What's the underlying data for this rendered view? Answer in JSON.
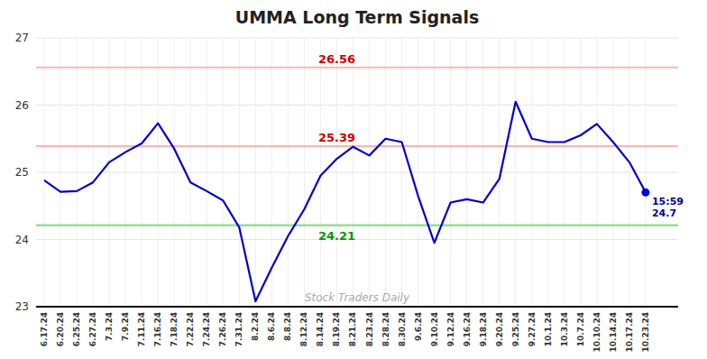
{
  "chart_data": {
    "type": "line",
    "title": "UMMA Long Term Signals",
    "categories": [
      "6.17.24",
      "6.20.24",
      "6.25.24",
      "6.27.24",
      "7.3.24",
      "7.9.24",
      "7.11.24",
      "7.16.24",
      "7.18.24",
      "7.22.24",
      "7.24.24",
      "7.26.24",
      "7.31.24",
      "8.2.24",
      "8.6.24",
      "8.8.24",
      "8.12.24",
      "8.14.24",
      "8.19.24",
      "8.21.24",
      "8.23.24",
      "8.28.24",
      "8.30.24",
      "9.6.24",
      "9.10.24",
      "9.12.24",
      "9.16.24",
      "9.18.24",
      "9.20.24",
      "9.25.24",
      "9.27.24",
      "10.1.24",
      "10.3.24",
      "10.7.24",
      "10.10.24",
      "10.14.24",
      "10.17.24",
      "10.23.24"
    ],
    "values": [
      24.88,
      24.71,
      24.72,
      24.85,
      25.15,
      25.3,
      25.43,
      25.73,
      25.35,
      24.85,
      24.72,
      24.58,
      24.18,
      23.08,
      23.58,
      24.05,
      24.45,
      24.95,
      25.2,
      25.38,
      25.25,
      25.5,
      25.45,
      24.65,
      23.95,
      24.55,
      24.6,
      24.55,
      24.9,
      26.05,
      25.5,
      25.45,
      25.45,
      25.55,
      25.72,
      25.45,
      25.15,
      24.7
    ],
    "color": "#0000cc",
    "ylim": [
      23.0,
      27.0
    ],
    "yticks": [
      23,
      24,
      25,
      26,
      27
    ],
    "grid": true,
    "reference_lines": [
      {
        "value": 26.56,
        "color": "#ffb3b3",
        "label": "26.56",
        "label_color": "#cc0000",
        "x": "8.19.24"
      },
      {
        "value": 25.39,
        "color": "#ffb3b3",
        "label": "25.39",
        "label_color": "#cc0000",
        "x": "8.19.24"
      },
      {
        "value": 24.21,
        "color": "#99dd99",
        "label": "24.21",
        "label_color": "#009900",
        "x": "8.19.24"
      }
    ],
    "last_point_label": {
      "time": "15:59",
      "value": 24.7,
      "color": "#000099"
    },
    "watermark": {
      "text": "Stock Traders Daily",
      "color": "#aaaaaa"
    }
  }
}
